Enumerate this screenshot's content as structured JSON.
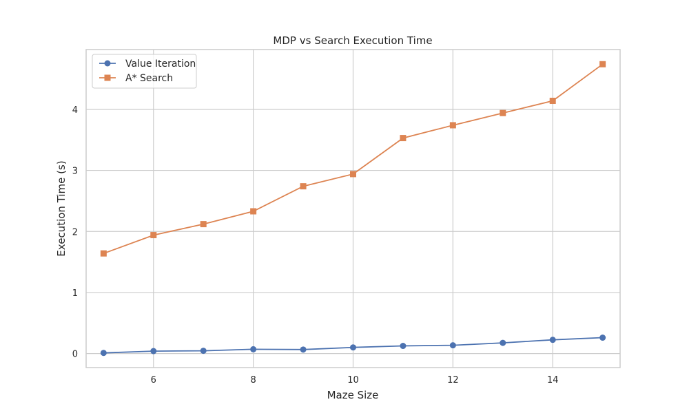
{
  "chart_data": {
    "type": "line",
    "title": "MDP vs Search Execution Time",
    "xlabel": "Maze Size",
    "ylabel": "Execution Time (s)",
    "x": [
      5,
      6,
      7,
      8,
      9,
      10,
      11,
      12,
      13,
      14,
      15
    ],
    "xlim": [
      4.65,
      15.35
    ],
    "ylim": [
      -0.23,
      4.98
    ],
    "xticks": [
      6,
      8,
      10,
      12,
      14
    ],
    "yticks": [
      0,
      1,
      2,
      3,
      4
    ],
    "grid": true,
    "legend_position": "top-left",
    "series": [
      {
        "name": "Value Iteration",
        "marker": "circle",
        "color": "#4c72b0",
        "values": [
          0.01,
          0.04,
          0.045,
          0.07,
          0.065,
          0.1,
          0.125,
          0.135,
          0.175,
          0.225,
          0.26
        ]
      },
      {
        "name": "A* Search",
        "marker": "square",
        "color": "#dd8452",
        "values": [
          1.64,
          1.94,
          2.12,
          2.33,
          2.74,
          2.94,
          3.53,
          3.74,
          3.94,
          4.14,
          4.74
        ]
      }
    ]
  }
}
